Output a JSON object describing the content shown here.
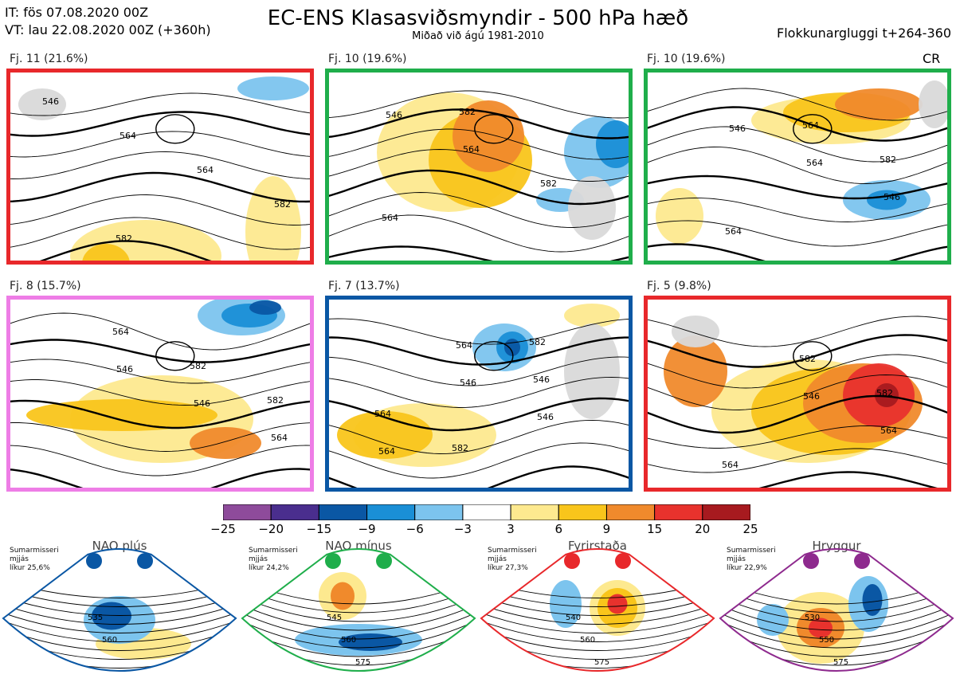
{
  "header": {
    "issue_time": "IT: fös 07.08.2020 00Z",
    "valid_time": "VT: lau 22.08.2020 00Z  (+360h)",
    "title": "EC-ENS Klasasviðsmyndir - 500 hPa hæð",
    "subtitle": "Miðað við ágú 1981-2010",
    "window": "Flokkunargluggi t+264-360"
  },
  "panels": [
    {
      "label": "Fj. 11 (21.6%)",
      "border": "#e8282b",
      "tag": "",
      "contours": [
        "546",
        "564",
        "564",
        "582",
        "582"
      ]
    },
    {
      "label": "Fj. 10 (19.6%)",
      "border": "#1fae4b",
      "tag": "",
      "contours": [
        "546",
        "564",
        "582",
        "564",
        "582"
      ]
    },
    {
      "label": "Fj. 10 (19.6%)",
      "border": "#1fae4b",
      "tag": "CR",
      "contours": [
        "546",
        "564",
        "546",
        "564",
        "564",
        "582"
      ]
    },
    {
      "label": "Fj. 8 (15.7%)",
      "border": "#ee7de6",
      "tag": "",
      "contours": [
        "546",
        "546",
        "564",
        "564",
        "582",
        "582"
      ]
    },
    {
      "label": "Fj. 7 (13.7%)",
      "border": "#0a57a4",
      "tag": "",
      "contours": [
        "546",
        "546",
        "564",
        "564",
        "546",
        "564",
        "582",
        "582"
      ]
    },
    {
      "label": "Fj. 5 (9.8%)",
      "border": "#e8282b",
      "tag": "",
      "contours": [
        "546",
        "564",
        "564",
        "582",
        "582"
      ]
    }
  ],
  "colorbar": {
    "ticks": [
      "−25",
      "−20",
      "−15",
      "−9",
      "−6",
      "−3",
      "3",
      "6",
      "9",
      "15",
      "20",
      "25"
    ],
    "colors": [
      "#8e4b9b",
      "#4a2e8e",
      "#0a57a4",
      "#1a8fd6",
      "#7cc4ee",
      "#ffffff",
      "#fde98f",
      "#f9c51b",
      "#f08a2c",
      "#e8322d",
      "#a71a1f"
    ]
  },
  "regimes": [
    {
      "name": "NAO plús",
      "note": [
        "Sumarmisseri",
        "mjjás",
        "líkur 25,6%"
      ],
      "color": "#0a57a4",
      "contours": [
        "535",
        "560"
      ]
    },
    {
      "name": "NAO mínus",
      "note": [
        "Sumarmisseri",
        "mjjás",
        "líkur 24,2%"
      ],
      "color": "#1fae4b",
      "contours": [
        "545",
        "560",
        "575"
      ]
    },
    {
      "name": "Fyrirstaða",
      "note": [
        "Sumarmisseri",
        "mjjás",
        "líkur 27,3%"
      ],
      "color": "#e8282b",
      "contours": [
        "540",
        "560",
        "575"
      ]
    },
    {
      "name": "Hryggur",
      "note": [
        "Sumarmisseri",
        "mjjás",
        "líkur 22,9%"
      ],
      "color": "#8e2a8e",
      "contours": [
        "530",
        "550",
        "575"
      ]
    }
  ]
}
